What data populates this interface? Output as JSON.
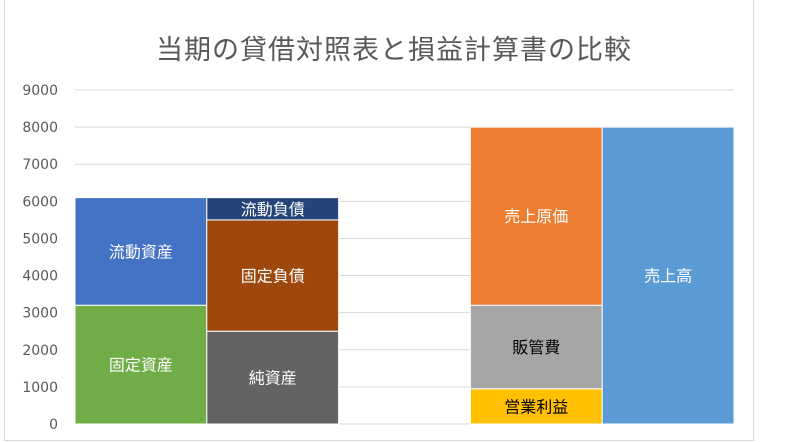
{
  "chart_data": {
    "type": "bar",
    "stacked": true,
    "title": "当期の貸借対照表と損益計算書の比較",
    "ylim": [
      0,
      9000
    ],
    "yticks": [
      0,
      1000,
      2000,
      3000,
      4000,
      5000,
      6000,
      7000,
      8000,
      9000
    ],
    "grid": true,
    "columns": [
      {
        "segments": [
          {
            "label": "固定資産",
            "value": 3200,
            "color": "#70ad47"
          },
          {
            "label": "流動資産",
            "value": 2900,
            "color": "#4472c4"
          }
        ]
      },
      {
        "segments": [
          {
            "label": "純資産",
            "value": 2500,
            "color": "#636363"
          },
          {
            "label": "固定負債",
            "value": 3000,
            "color": "#9e480e"
          },
          {
            "label": "流動負債",
            "value": 600,
            "color": "#264478"
          }
        ]
      },
      {
        "segments": []
      },
      {
        "segments": [
          {
            "label": "営業利益",
            "value": 950,
            "color": "#ffc000"
          },
          {
            "label": "販管費",
            "value": 2250,
            "color": "#a5a5a5"
          },
          {
            "label": "売上原価",
            "value": 4800,
            "color": "#ed7d31"
          }
        ]
      },
      {
        "segments": [
          {
            "label": "売上高",
            "value": 8000,
            "color": "#5b9bd5"
          }
        ]
      }
    ]
  }
}
